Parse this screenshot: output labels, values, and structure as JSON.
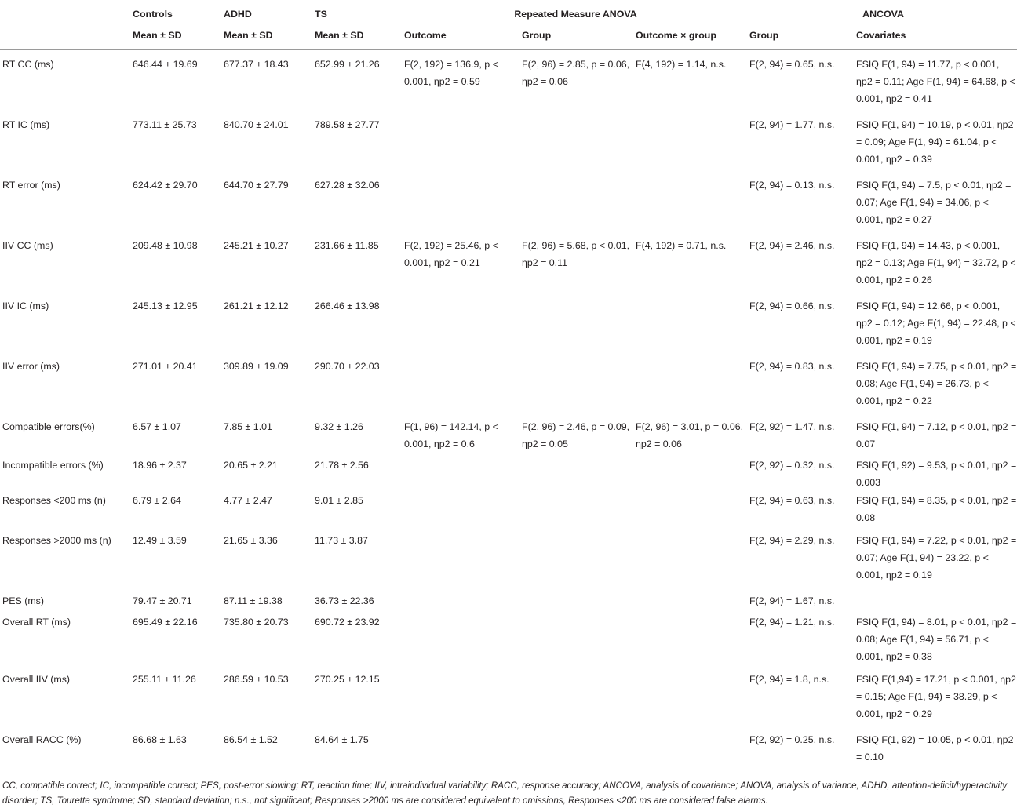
{
  "headers": {
    "top": {
      "controls": "Controls",
      "adhd": "ADHD",
      "ts": "TS",
      "rm_anova": "Repeated Measure ANOVA",
      "ancova": "ANCOVA"
    },
    "sub": {
      "mean_sd_controls": "Mean ± SD",
      "mean_sd_adhd": "Mean ± SD",
      "mean_sd_ts": "Mean ± SD",
      "outcome": "Outcome",
      "group": "Group",
      "outcome_x_group": "Outcome × group",
      "ancova_group": "Group",
      "covariates": "Covariates"
    }
  },
  "rows": [
    {
      "measure": "RT CC (ms)",
      "controls": "646.44 ± 19.69",
      "adhd": "677.37 ± 18.43",
      "ts": "652.99 ± 21.26",
      "outcome": "F(2, 192) = 136.9, p < 0.001, ηp2 = 0.59",
      "group": "F(2, 96) = 2.85, p = 0.06, ηp2 = 0.06",
      "interaction": "F(4, 192) = 1.14, n.s.",
      "ancova_group": "F(2, 94) = 0.65, n.s.",
      "covariates": "FSIQ F(1, 94) = 11.77, p < 0.001, ηp2 = 0.11; Age F(1, 94) = 64.68, p < 0.001, ηp2 = 0.41"
    },
    {
      "measure": "RT IC (ms)",
      "controls": "773.11 ± 25.73",
      "adhd": "840.70 ± 24.01",
      "ts": "789.58 ± 27.77",
      "outcome": "",
      "group": "",
      "interaction": "",
      "ancova_group": "F(2, 94) = 1.77, n.s.",
      "covariates": "FSIQ F(1, 94) = 10.19, p < 0.01, ηp2 = 0.09; Age F(1, 94) = 61.04, p < 0.001, ηp2 = 0.39"
    },
    {
      "measure": "RT error (ms)",
      "controls": "624.42 ± 29.70",
      "adhd": "644.70 ± 27.79",
      "ts": "627.28 ± 32.06",
      "outcome": "",
      "group": "",
      "interaction": "",
      "ancova_group": "F(2, 94) = 0.13, n.s.",
      "covariates": "FSIQ F(1, 94) = 7.5, p < 0.01, ηp2 = 0.07; Age F(1, 94) = 34.06, p < 0.001, ηp2 = 0.27"
    },
    {
      "measure": "IIV CC (ms)",
      "controls": "209.48 ± 10.98",
      "adhd": "245.21 ± 10.27",
      "ts": "231.66 ± 11.85",
      "outcome": "F(2, 192) = 25.46, p < 0.001, ηp2 = 0.21",
      "group": "F(2, 96) = 5.68, p < 0.01, ηp2 = 0.11",
      "interaction": "F(4, 192) = 0.71, n.s.",
      "ancova_group": "F(2, 94) = 2.46, n.s.",
      "covariates": "FSIQ F(1, 94) = 14.43, p < 0.001, ηp2 = 0.13; Age F(1, 94) = 32.72, p < 0.001, ηp2 = 0.26"
    },
    {
      "measure": "IIV IC (ms)",
      "controls": "245.13 ± 12.95",
      "adhd": "261.21 ± 12.12",
      "ts": "266.46 ± 13.98",
      "outcome": "",
      "group": "",
      "interaction": "",
      "ancova_group": "F(2, 94) = 0.66, n.s.",
      "covariates": "FSIQ F(1, 94) = 12.66, p < 0.001, ηp2 = 0.12; Age F(1, 94) = 22.48, p < 0.001, ηp2 = 0.19"
    },
    {
      "measure": "IIV error (ms)",
      "controls": "271.01 ± 20.41",
      "adhd": "309.89 ± 19.09",
      "ts": "290.70 ± 22.03",
      "outcome": "",
      "group": "",
      "interaction": "",
      "ancova_group": "F(2, 94) = 0.83, n.s.",
      "covariates": "FSIQ F(1, 94) = 7.75, p < 0.01, ηp2 = 0.08; Age F(1, 94) = 26.73, p < 0.001, ηp2 = 0.22"
    },
    {
      "measure": "Compatible errors(%)",
      "controls": "6.57 ± 1.07",
      "adhd": "7.85 ± 1.01",
      "ts": "9.32 ± 1.26",
      "outcome": "F(1, 96) = 142.14, p < 0.001, ηp2 = 0.6",
      "group": "F(2, 96) = 2.46, p = 0.09, ηp2 = 0.05",
      "interaction": "F(2, 96) = 3.01, p = 0.06, ηp2 = 0.06",
      "ancova_group": "F(2, 92) = 1.47, n.s.",
      "covariates": "FSIQ F(1, 94) = 7.12, p < 0.01, ηp2 = 0.07"
    },
    {
      "measure": "Incompatible errors (%)",
      "controls": "18.96 ± 2.37",
      "adhd": "20.65 ± 2.21",
      "ts": "21.78 ± 2.56",
      "outcome": "",
      "group": "",
      "interaction": "",
      "ancova_group": "F(2, 92) = 0.32, n.s.",
      "covariates": "FSIQ F(1, 92) = 9.53, p < 0.01, ηp2 = 0.003"
    },
    {
      "measure": "Responses <200 ms (n)",
      "controls": "6.79 ± 2.64",
      "adhd": "4.77 ± 2.47",
      "ts": "9.01 ± 2.85",
      "outcome": "",
      "group": "",
      "interaction": "",
      "ancova_group": "F(2, 94) = 0.63, n.s.",
      "covariates": "FSIQ F(1, 94) = 8.35, p < 0.01, ηp2 = 0.08"
    },
    {
      "measure": "Responses >2000 ms (n)",
      "controls": "12.49 ± 3.59",
      "adhd": "21.65 ± 3.36",
      "ts": "11.73 ± 3.87",
      "outcome": "",
      "group": "",
      "interaction": "",
      "ancova_group": "F(2, 94) = 2.29, n.s.",
      "covariates": "FSIQ F(1, 94) = 7.22, p < 0.01, ηp2 = 0.07; Age F(1, 94) = 23.22, p < 0.001, ηp2 = 0.19"
    },
    {
      "measure": "PES (ms)",
      "controls": "79.47 ± 20.71",
      "adhd": "87.11 ± 19.38",
      "ts": "36.73 ± 22.36",
      "outcome": "",
      "group": "",
      "interaction": "",
      "ancova_group": "F(2, 94) = 1.67, n.s.",
      "covariates": ""
    },
    {
      "measure": "Overall RT (ms)",
      "controls": "695.49 ± 22.16",
      "adhd": "735.80 ± 20.73",
      "ts": "690.72 ± 23.92",
      "outcome": "",
      "group": "",
      "interaction": "",
      "ancova_group": "F(2, 94) = 1.21, n.s.",
      "covariates": "FSIQ F(1, 94) = 8.01, p < 0.01, ηp2 = 0.08; Age F(1, 94) = 56.71, p < 0.001, ηp2 = 0.38"
    },
    {
      "measure": "Overall IIV (ms)",
      "controls": "255.11 ± 11.26",
      "adhd": "286.59 ± 10.53",
      "ts": "270.25 ± 12.15",
      "outcome": "",
      "group": "",
      "interaction": "",
      "ancova_group": "F(2, 94) = 1.8, n.s.",
      "covariates": "FSIQ F(1,94) = 17.21, p < 0.001, ηp2 = 0.15; Age F(1, 94) = 38.29, p < 0.001, ηp2 = 0.29"
    },
    {
      "measure": "Overall RACC (%)",
      "controls": "86.68 ± 1.63",
      "adhd": "86.54 ± 1.52",
      "ts": "84.64 ± 1.75",
      "outcome": "",
      "group": "",
      "interaction": "",
      "ancova_group": "F(2, 92) = 0.25, n.s.",
      "covariates": "FSIQ F(1, 92) = 10.05, p < 0.01, ηp2 = 0.10"
    }
  ],
  "footnote": "CC, compatible correct; IC, incompatible correct; PES, post-error slowing; RT, reaction time; IIV, intraindividual variability; RACC, response accuracy; ANCOVA, analysis of covariance; ANOVA, analysis of variance, ADHD, attention-deficit/hyperactivity disorder; TS, Tourette syndrome; SD, standard deviation; n.s., not significant; Responses >2000 ms are considered equivalent to omissions, Responses <200 ms are considered false alarms."
}
